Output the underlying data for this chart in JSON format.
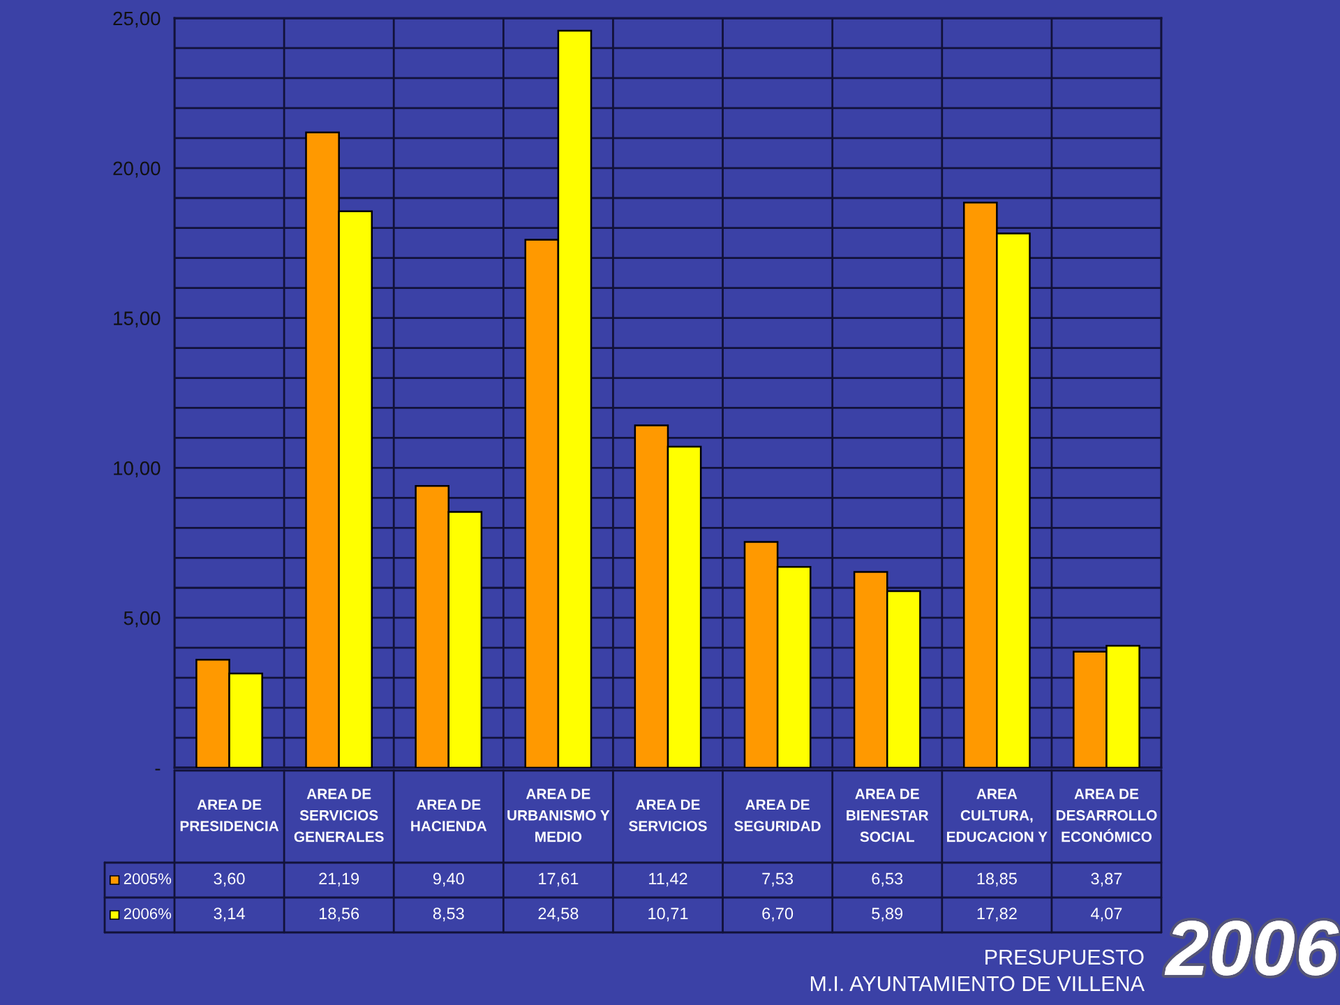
{
  "chart_data": {
    "type": "bar",
    "categories": [
      "AREA DE\nPRESIDENCIA",
      "AREA DE\nSERVICIOS\nGENERALES",
      "AREA DE\nHACIENDA",
      "AREA DE\nURBANISMO Y\nMEDIO",
      "AREA DE\nSERVICIOS",
      "AREA DE\nSEGURIDAD",
      "AREA DE\nBIENESTAR\nSOCIAL",
      "AREA\nCULTURA,\nEDUCACION Y",
      "AREA DE\nDESARROLLO\nECONÓMICO"
    ],
    "series": [
      {
        "name": "2005%",
        "color": "#ff9900",
        "values": [
          3.6,
          21.19,
          9.4,
          17.61,
          11.42,
          7.53,
          6.53,
          18.85,
          3.87
        ],
        "value_labels": [
          "3,60",
          "21,19",
          "9,40",
          "17,61",
          "11,42",
          "7,53",
          "6,53",
          "18,85",
          "3,87"
        ]
      },
      {
        "name": "2006%",
        "color": "#ffff00",
        "values": [
          3.14,
          18.56,
          8.53,
          24.58,
          10.71,
          6.7,
          5.89,
          17.82,
          4.07
        ],
        "value_labels": [
          "3,14",
          "18,56",
          "8,53",
          "24,58",
          "10,71",
          "6,70",
          "5,89",
          "17,82",
          "4,07"
        ]
      }
    ],
    "ylim": [
      0,
      25
    ],
    "yticks": [
      {
        "value": 0,
        "label": "-"
      },
      {
        "value": 1,
        "label": null
      },
      {
        "value": 2,
        "label": null
      },
      {
        "value": 3,
        "label": null
      },
      {
        "value": 4,
        "label": null
      },
      {
        "value": 5,
        "label": "5,00"
      },
      {
        "value": 6,
        "label": null
      },
      {
        "value": 7,
        "label": null
      },
      {
        "value": 8,
        "label": null
      },
      {
        "value": 9,
        "label": null
      },
      {
        "value": 10,
        "label": "10,00"
      },
      {
        "value": 11,
        "label": null
      },
      {
        "value": 12,
        "label": null
      },
      {
        "value": 13,
        "label": null
      },
      {
        "value": 14,
        "label": null
      },
      {
        "value": 15,
        "label": "15,00"
      },
      {
        "value": 16,
        "label": null
      },
      {
        "value": 17,
        "label": null
      },
      {
        "value": 18,
        "label": null
      },
      {
        "value": 19,
        "label": null
      },
      {
        "value": 20,
        "label": "20,00"
      },
      {
        "value": 21,
        "label": null
      },
      {
        "value": 22,
        "label": null
      },
      {
        "value": 23,
        "label": null
      },
      {
        "value": 24,
        "label": null
      },
      {
        "value": 25,
        "label": "25,00"
      }
    ],
    "grid": true,
    "legend": "bottom left",
    "annotations": [
      "PRESUPUESTO",
      "M.I. AYUNTAMIENTO DE VILLENA",
      "2006"
    ]
  }
}
